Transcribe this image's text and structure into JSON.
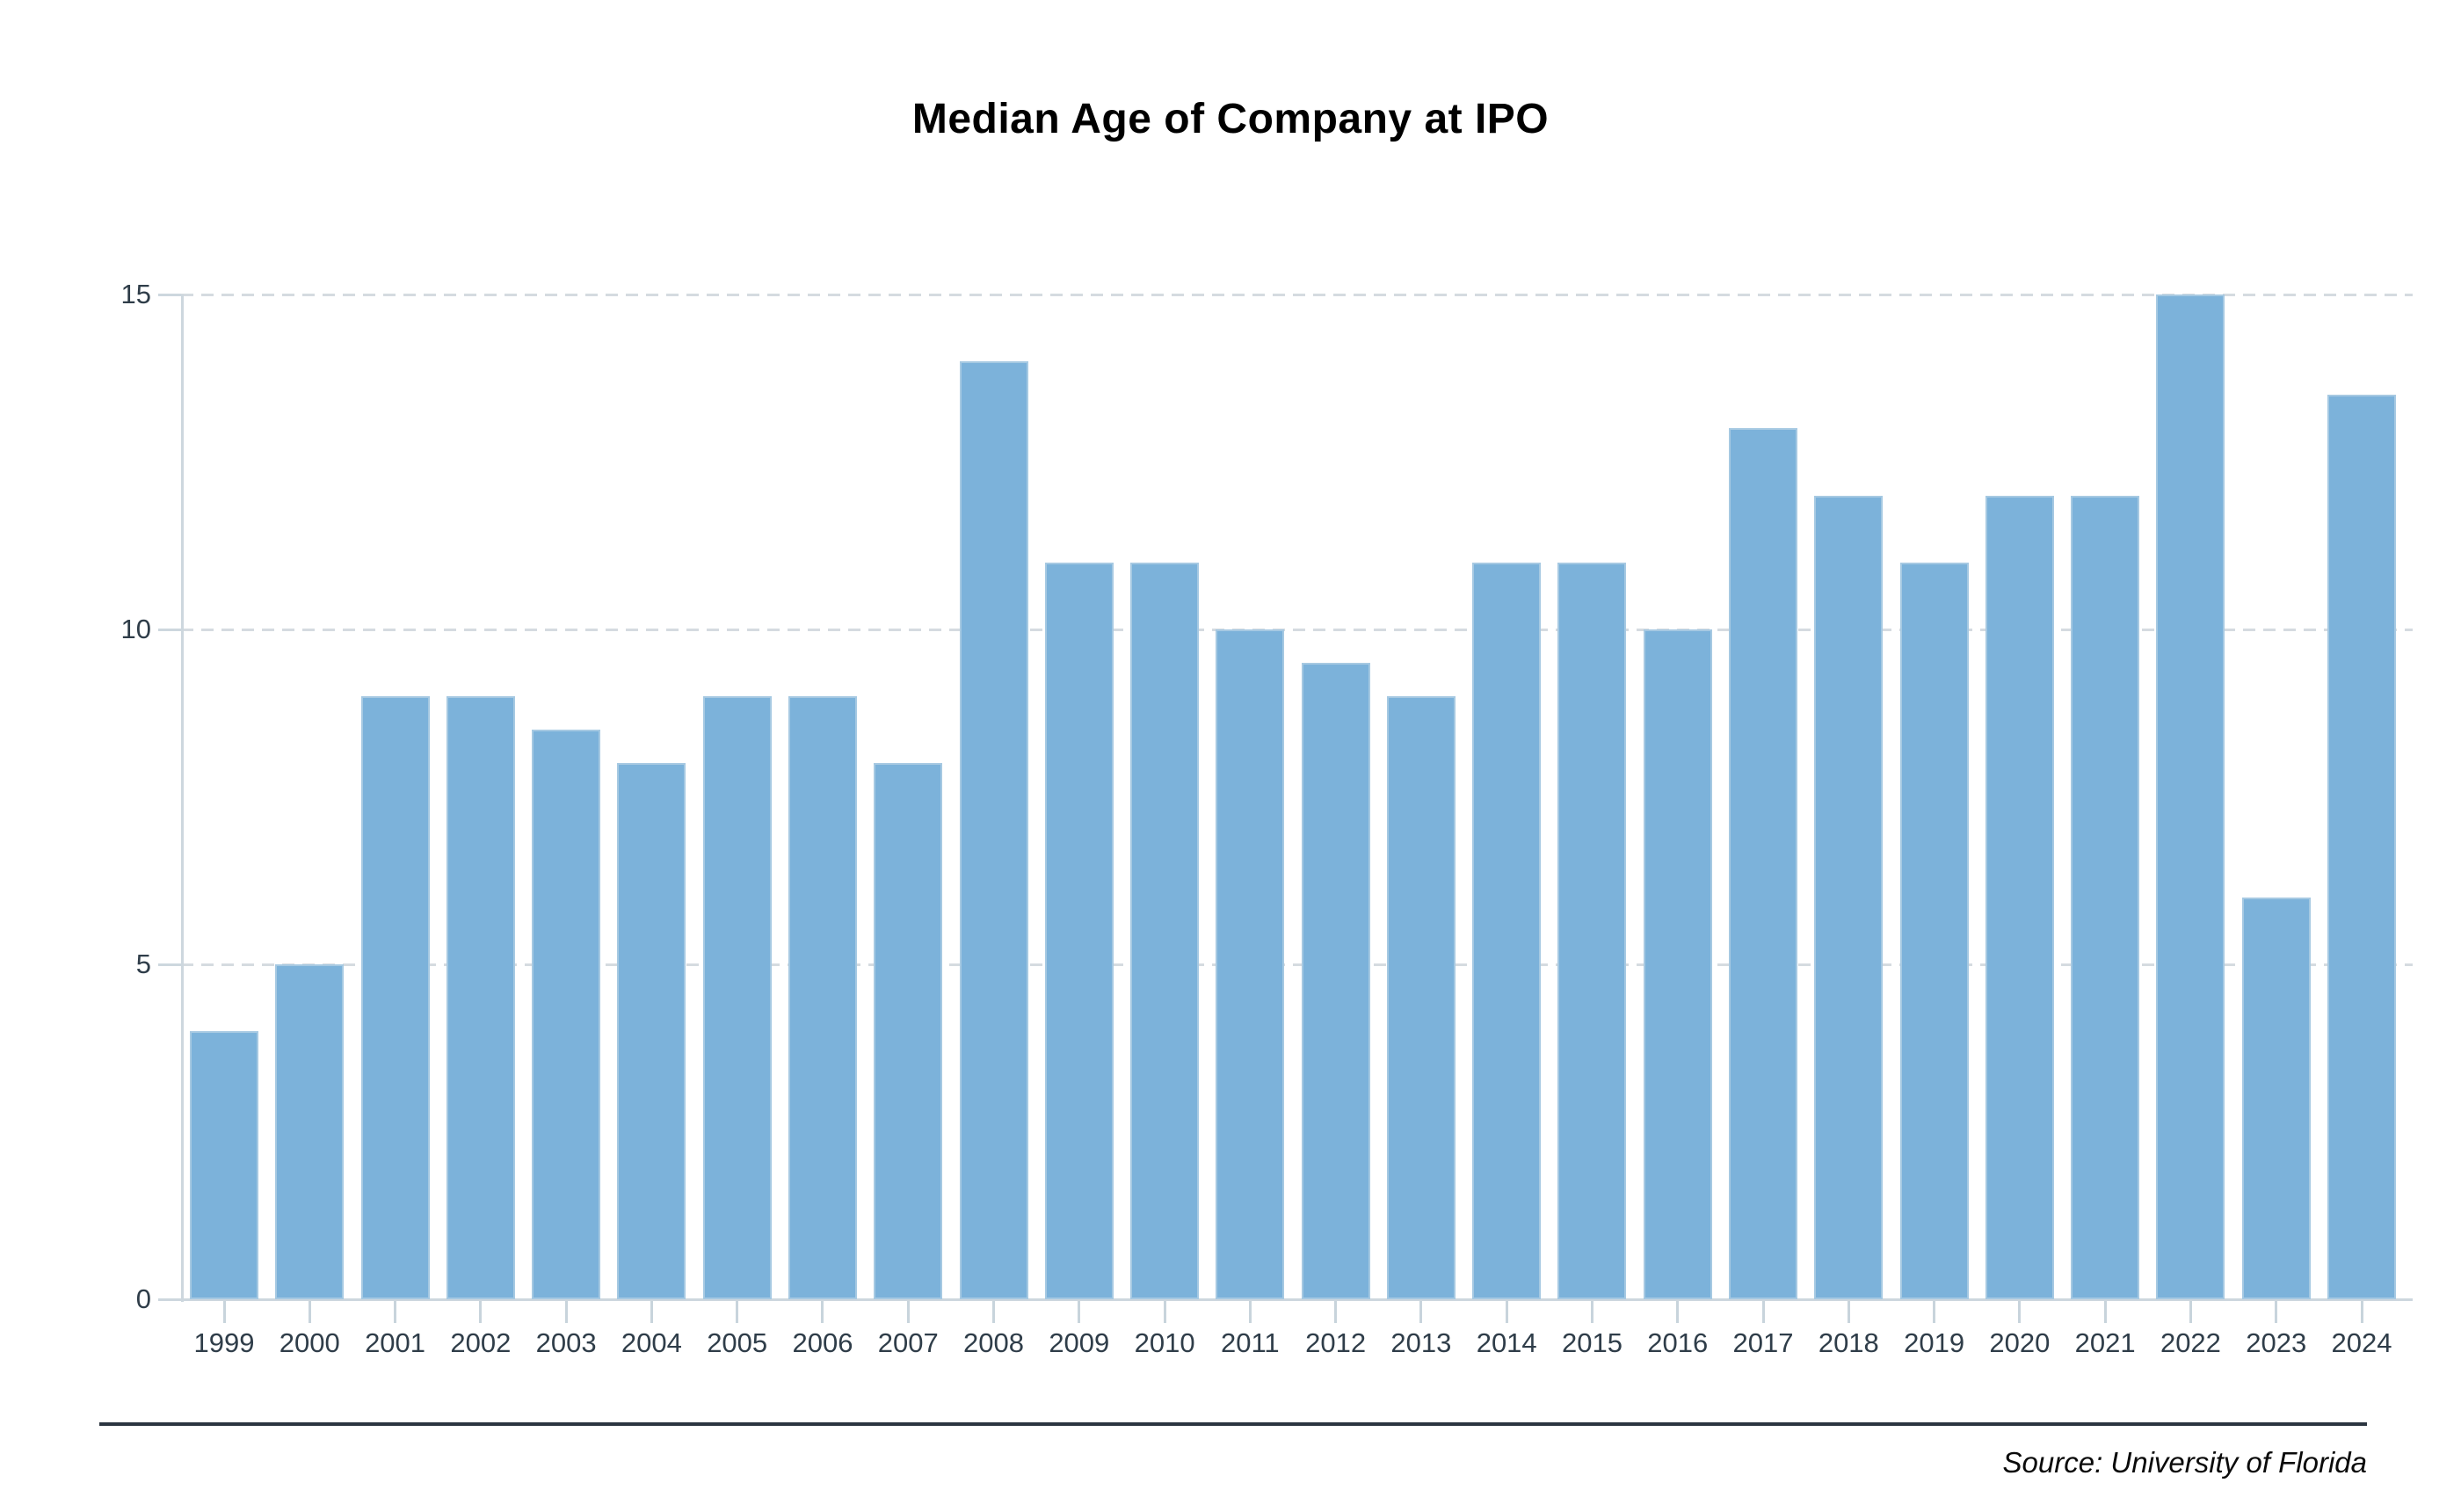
{
  "title": "Median Age of Company at IPO",
  "footer": {
    "source_label": "Source: University of Florida"
  },
  "y_axis": {
    "tick_labels": [
      "15",
      "10",
      "5",
      "0"
    ],
    "tick_values": [
      15,
      10,
      5,
      0
    ]
  },
  "chart_data": {
    "type": "bar",
    "title": "Median Age of Company at IPO",
    "xlabel": "",
    "ylabel": "",
    "categories": [
      "1999",
      "2000",
      "2001",
      "2002",
      "2003",
      "2004",
      "2005",
      "2006",
      "2007",
      "2008",
      "2009",
      "2010",
      "2011",
      "2012",
      "2013",
      "2014",
      "2015",
      "2016",
      "2017",
      "2018",
      "2019",
      "2020",
      "2021",
      "2022",
      "2023",
      "2024"
    ],
    "values": [
      4,
      5,
      9,
      9,
      8.5,
      8,
      9,
      9,
      8,
      14,
      11,
      11,
      10,
      9.5,
      9,
      11,
      11,
      10,
      13,
      12,
      11,
      12,
      12,
      15,
      6,
      13.5
    ],
    "ylim": [
      0,
      15
    ],
    "yticks": [
      0,
      5,
      10,
      15
    ],
    "gridlines": "horizontal dashed at 5, 10, 15",
    "legend_position": "none",
    "bar_color": "#7cb2da"
  },
  "colors": {
    "bar": "#7cb2da",
    "bar_edge": "#a6c9e2",
    "axis": "#cdd7de",
    "grid_dash": "#d5dbe0",
    "tick": "#c8d4dc",
    "axis_label": "#2f3d49",
    "footer_rule": "#2b3540",
    "title_text": "#000000",
    "background": "#ffffff"
  }
}
